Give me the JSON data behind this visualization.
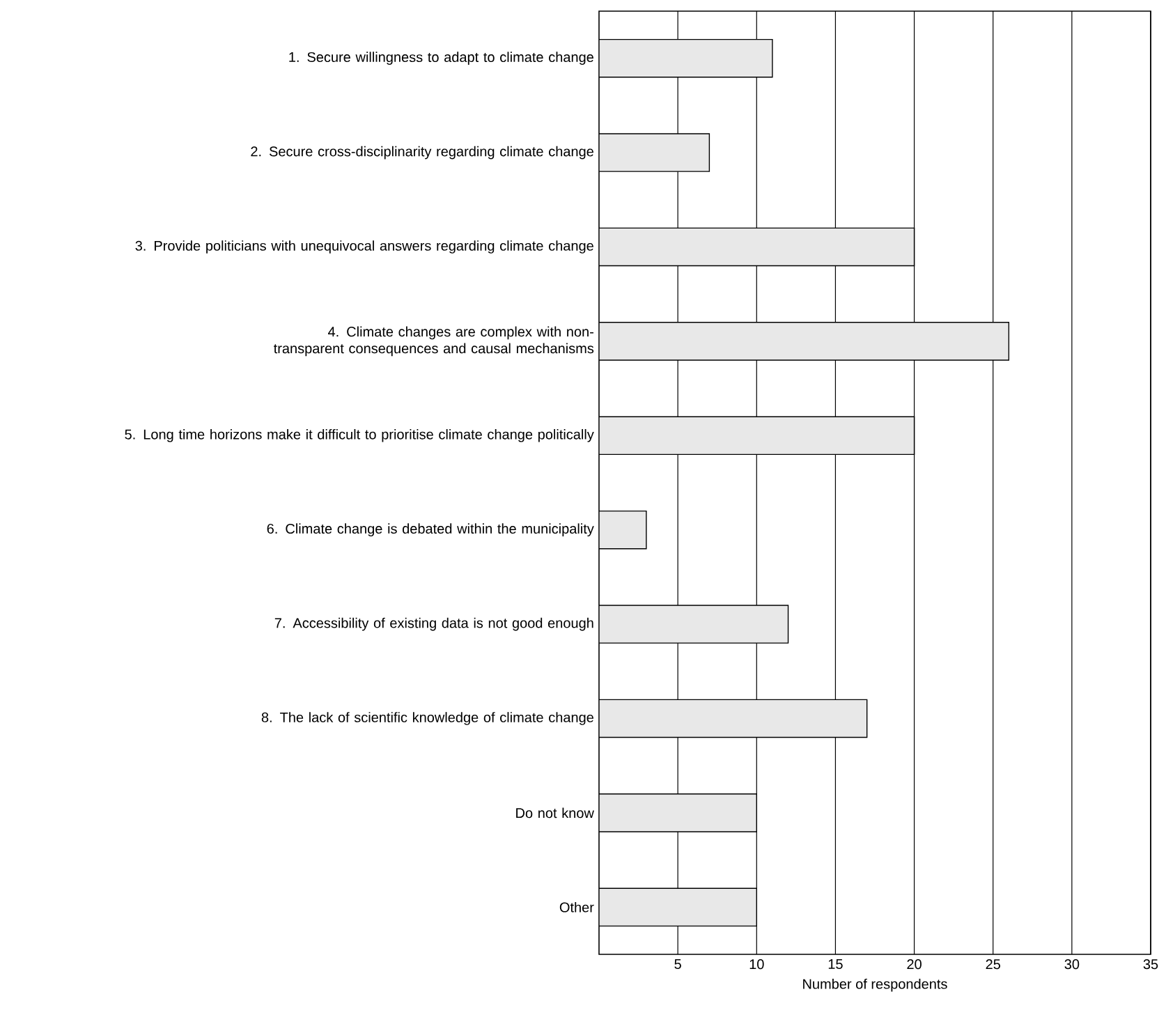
{
  "chart_data": {
    "type": "bar",
    "orientation": "horizontal",
    "xlabel": "Number of respondents",
    "categories": [
      "1. Secure willingness to adapt to climate change",
      "2. Secure cross-disciplinarity regarding climate change",
      "3. Provide politicians with unequivocal answers regarding climate change",
      "4. Climate changes are complex with non-transparent consequences and causal mechanisms",
      "5. Long time horizons make it difficult to prioritise climate change politically",
      "6. Climate change is debated within the municipality",
      "7. Accessibility of existing data is not good enough",
      "8. The lack of scientific knowledge of climate change",
      "Do not know",
      "Other"
    ],
    "values": [
      11,
      7,
      20,
      26,
      20,
      3,
      12,
      17,
      10,
      10
    ],
    "color": "#e8e8e8",
    "xlim": [
      0,
      35
    ],
    "xticks": [
      5,
      10,
      15,
      20,
      25,
      30,
      35
    ],
    "grid": "x"
  }
}
